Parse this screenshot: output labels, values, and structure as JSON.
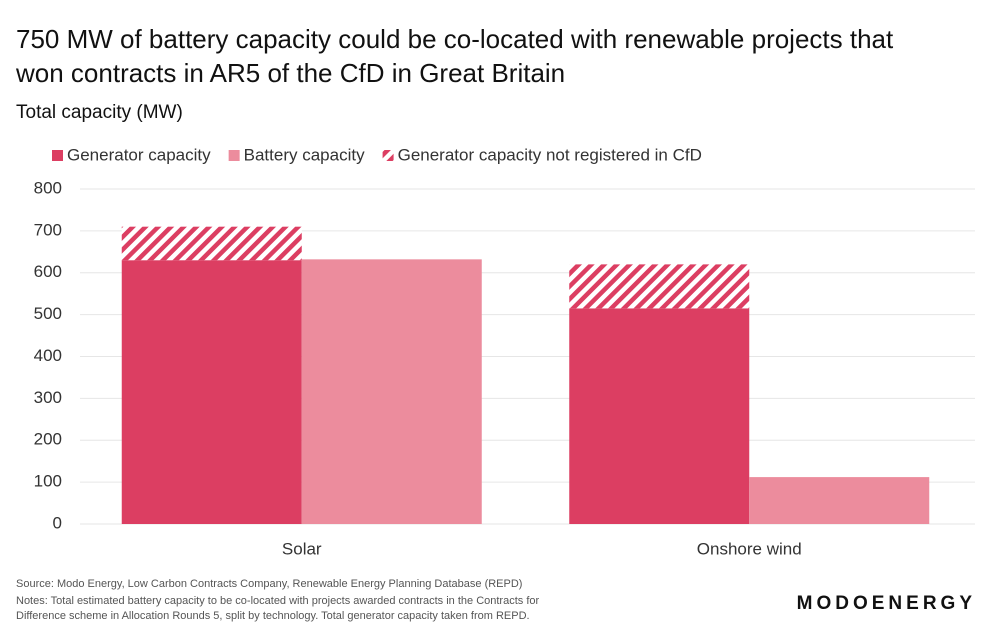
{
  "chart_data": {
    "type": "bar",
    "title": "750 MW of battery capacity could be co-located with renewable projects that won contracts in AR5 of the CfD in Great Britain",
    "subtitle": "Total capacity (MW)",
    "categories": [
      "Solar",
      "Onshore wind"
    ],
    "series": [
      {
        "name": "Generator capacity",
        "color": "#dc3e62",
        "values": [
          630,
          515
        ]
      },
      {
        "name": "Battery capacity",
        "color": "#ec8c9d",
        "values": [
          632,
          112
        ]
      },
      {
        "name": "Generator capacity not registered in CfD",
        "color": "#dc3e62",
        "values": [
          80,
          105
        ],
        "hatch": true,
        "stack_on": 0
      }
    ],
    "ylim": [
      0,
      800
    ],
    "yticks": [
      0,
      100,
      200,
      300,
      400,
      500,
      600,
      700,
      800
    ],
    "grid": true,
    "source": "Source: Modo Energy, Low Carbon Contracts Company, Renewable Energy Planning Database (REPD)",
    "notes": [
      "Notes: Total estimated battery capacity to be co-located with projects awarded contracts in the Contracts for",
      "Difference scheme in Allocation Rounds 5, split by technology. Total generator capacity taken from REPD."
    ],
    "logo": "MODOENERGY"
  }
}
